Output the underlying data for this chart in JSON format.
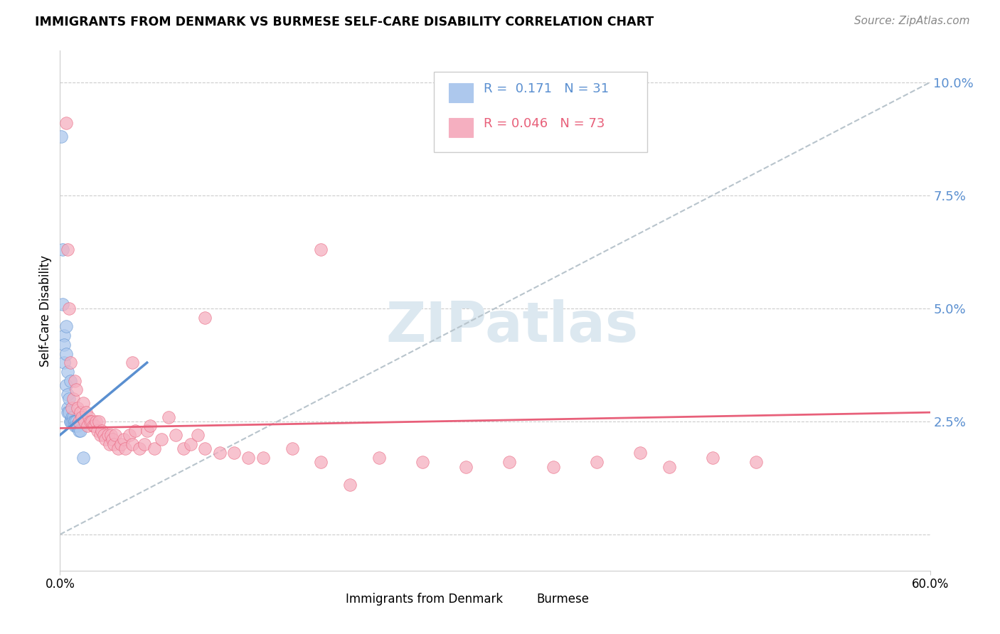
{
  "title": "IMMIGRANTS FROM DENMARK VS BURMESE SELF-CARE DISABILITY CORRELATION CHART",
  "source": "Source: ZipAtlas.com",
  "ylabel": "Self-Care Disability",
  "yticks": [
    0.0,
    0.025,
    0.05,
    0.075,
    0.1
  ],
  "ytick_labels": [
    "",
    "2.5%",
    "5.0%",
    "7.5%",
    "10.0%"
  ],
  "xmin": 0.0,
  "xmax": 0.6,
  "ymin": -0.008,
  "ymax": 0.107,
  "legend_r_blue": "0.171",
  "legend_n_blue": "31",
  "legend_r_pink": "0.046",
  "legend_n_pink": "73",
  "legend_label_blue": "Immigrants from Denmark",
  "legend_label_pink": "Burmese",
  "blue_color": "#adc8ed",
  "pink_color": "#f5afc0",
  "blue_line_color": "#5a8fd0",
  "pink_line_color": "#e8607a",
  "diag_line_color": "#b8c4cc",
  "watermark_text": "ZIPatlas",
  "watermark_color": "#dce8f0",
  "blue_scatter_x": [
    0.001,
    0.002,
    0.002,
    0.003,
    0.003,
    0.003,
    0.004,
    0.004,
    0.004,
    0.005,
    0.005,
    0.005,
    0.005,
    0.006,
    0.006,
    0.007,
    0.007,
    0.007,
    0.008,
    0.008,
    0.009,
    0.009,
    0.01,
    0.01,
    0.01,
    0.011,
    0.011,
    0.012,
    0.013,
    0.014,
    0.016
  ],
  "blue_scatter_y": [
    0.088,
    0.063,
    0.051,
    0.044,
    0.042,
    0.038,
    0.046,
    0.04,
    0.033,
    0.036,
    0.031,
    0.028,
    0.027,
    0.03,
    0.027,
    0.034,
    0.025,
    0.025,
    0.026,
    0.025,
    0.026,
    0.025,
    0.025,
    0.025,
    0.024,
    0.025,
    0.024,
    0.024,
    0.023,
    0.023,
    0.017
  ],
  "pink_scatter_x": [
    0.004,
    0.005,
    0.006,
    0.007,
    0.008,
    0.009,
    0.01,
    0.011,
    0.012,
    0.013,
    0.014,
    0.015,
    0.016,
    0.017,
    0.018,
    0.019,
    0.02,
    0.021,
    0.022,
    0.023,
    0.024,
    0.025,
    0.026,
    0.027,
    0.028,
    0.029,
    0.03,
    0.031,
    0.033,
    0.034,
    0.035,
    0.036,
    0.037,
    0.038,
    0.04,
    0.042,
    0.044,
    0.045,
    0.048,
    0.05,
    0.052,
    0.055,
    0.058,
    0.06,
    0.062,
    0.065,
    0.07,
    0.075,
    0.08,
    0.085,
    0.09,
    0.095,
    0.1,
    0.11,
    0.12,
    0.13,
    0.14,
    0.16,
    0.18,
    0.2,
    0.22,
    0.25,
    0.28,
    0.31,
    0.34,
    0.37,
    0.4,
    0.42,
    0.45,
    0.48,
    0.05,
    0.1,
    0.18
  ],
  "pink_scatter_y": [
    0.091,
    0.063,
    0.05,
    0.038,
    0.028,
    0.03,
    0.034,
    0.032,
    0.028,
    0.025,
    0.027,
    0.026,
    0.029,
    0.025,
    0.027,
    0.024,
    0.026,
    0.025,
    0.025,
    0.024,
    0.024,
    0.025,
    0.023,
    0.025,
    0.022,
    0.023,
    0.022,
    0.021,
    0.022,
    0.02,
    0.022,
    0.021,
    0.02,
    0.022,
    0.019,
    0.02,
    0.021,
    0.019,
    0.022,
    0.02,
    0.023,
    0.019,
    0.02,
    0.023,
    0.024,
    0.019,
    0.021,
    0.026,
    0.022,
    0.019,
    0.02,
    0.022,
    0.019,
    0.018,
    0.018,
    0.017,
    0.017,
    0.019,
    0.016,
    0.011,
    0.017,
    0.016,
    0.015,
    0.016,
    0.015,
    0.016,
    0.018,
    0.015,
    0.017,
    0.016,
    0.038,
    0.048,
    0.063
  ],
  "blue_trend_x": [
    0.0,
    0.06
  ],
  "blue_trend_y": [
    0.022,
    0.038
  ],
  "pink_trend_x": [
    0.0,
    0.6
  ],
  "pink_trend_y": [
    0.0235,
    0.027
  ]
}
